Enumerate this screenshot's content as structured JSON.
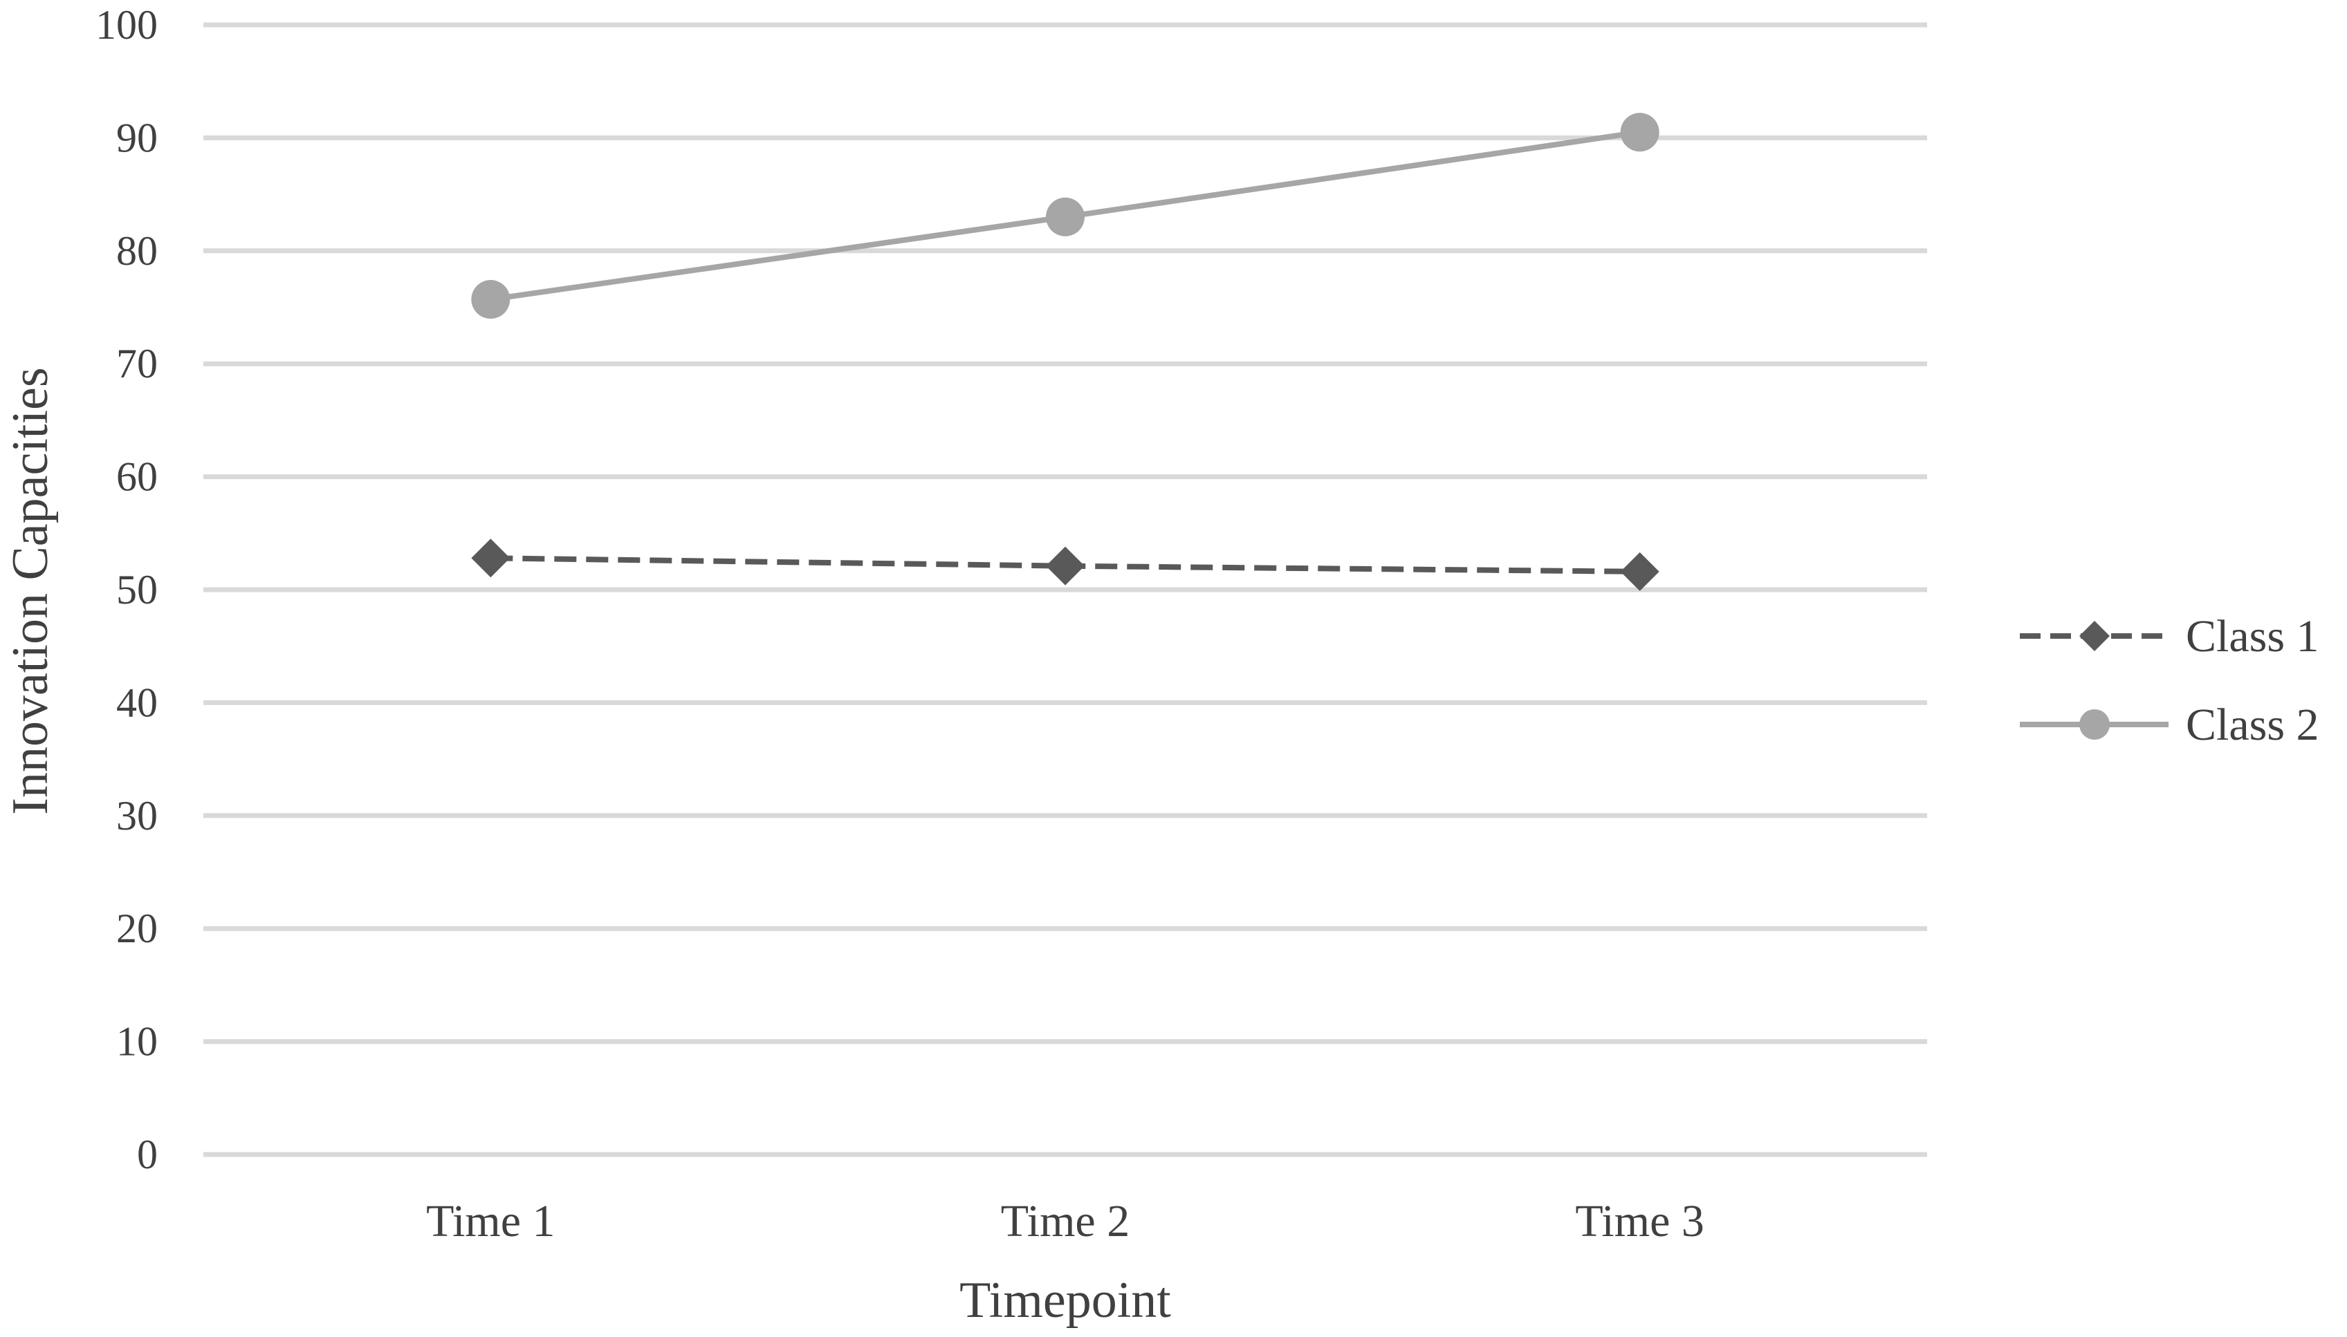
{
  "chart_data": {
    "type": "line",
    "title": "",
    "xlabel": "Timepoint",
    "ylabel": "Innovation Capacities",
    "categories": [
      "Time 1",
      "Time 2",
      "Time 3"
    ],
    "ylim": [
      0,
      100
    ],
    "yticks": [
      "0",
      "10",
      "20",
      "30",
      "40",
      "50",
      "60",
      "70",
      "80",
      "90",
      "100"
    ],
    "grid": true,
    "legend_position": "right",
    "series": [
      {
        "name": "Class 1",
        "values": [
          52.8,
          52.1,
          51.6
        ],
        "color": "#595959",
        "line_style": "dashed",
        "marker": "diamond"
      },
      {
        "name": "Class 2",
        "values": [
          75.7,
          83.0,
          90.5
        ],
        "color": "#a6a6a6",
        "line_style": "solid",
        "marker": "circle"
      }
    ]
  }
}
